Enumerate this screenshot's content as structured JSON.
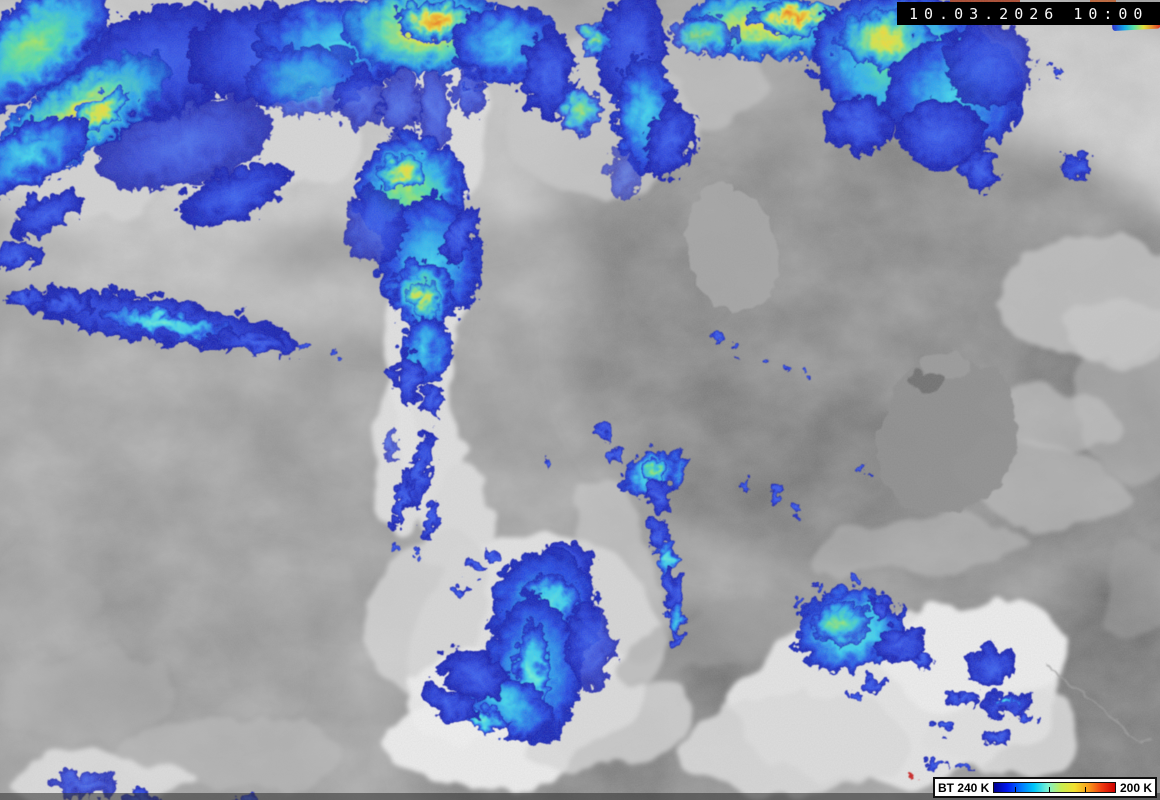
{
  "header": {
    "timestamp_date": "10.03.2026",
    "timestamp_time": "10:00"
  },
  "legend": {
    "left_label": "BT 240 K",
    "right_label": "200 K",
    "colorbar_stops": [
      "#000090",
      "#0018f0",
      "#0076ff",
      "#00c8f8",
      "#7df2d2",
      "#c8ee52",
      "#f2e030",
      "#f89e1b",
      "#f03c10",
      "#cc0000"
    ],
    "tick_positions_pct": [
      17.5,
      45.5,
      75.5
    ]
  },
  "palette": {
    "cold_top_blue": "#2840dc",
    "cold_top_cyan": "#2ba0f0",
    "cold_top_aqua": "#38ccf2",
    "cold_top_green": "#50dcb0",
    "cold_top_yellow": "#f2dc3a",
    "cold_top_orange": "#ee7d20",
    "cloud_white": "#e6e6e6",
    "land_dark_gray": "#6e6e6e",
    "sea_mid_gray": "#8e8e8e"
  }
}
